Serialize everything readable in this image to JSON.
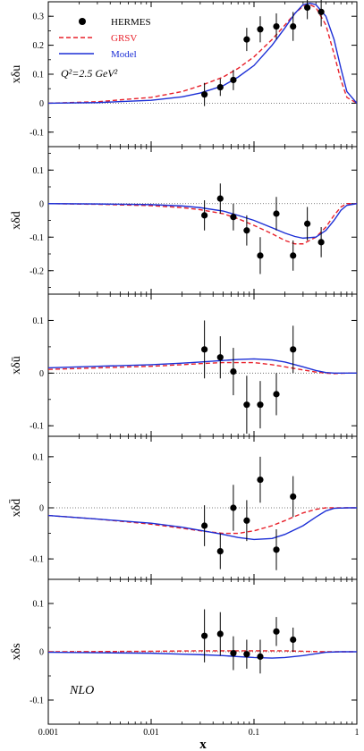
{
  "figure": {
    "xlabel": "x",
    "x_axis": {
      "type": "log",
      "range": [
        0.001,
        1
      ],
      "ticks": [
        0.001,
        0.01,
        0.1,
        1
      ],
      "tick_labels": [
        "0.001",
        "0.01",
        "0.1",
        "1"
      ]
    },
    "legend": [
      {
        "label": "HERMES",
        "style": "point",
        "color": "#000000"
      },
      {
        "label": "GRSV",
        "style": "dashed",
        "color": "#e8202a"
      },
      {
        "label": "Model",
        "style": "solid",
        "color": "#1c2fd6"
      }
    ],
    "legend_placement": "top-left of first panel",
    "annotations": {
      "scale": "Q²=2.5 GeV²",
      "order": "NLO"
    }
  },
  "chart_data": [
    {
      "type": "line",
      "ylabel": "xδu",
      "ylim": [
        -0.15,
        0.35
      ],
      "y_ticks": [
        -0.1,
        0,
        0.1,
        0.2,
        0.3
      ],
      "y_tick_labels": [
        "-0.1",
        "0",
        "0.1",
        "0.2",
        "0.3"
      ],
      "grid": false,
      "zero_line": "dotted",
      "points": [
        {
          "x": 0.033,
          "y": 0.03,
          "err": 0.04
        },
        {
          "x": 0.047,
          "y": 0.055,
          "err": 0.03
        },
        {
          "x": 0.063,
          "y": 0.08,
          "err": 0.035
        },
        {
          "x": 0.085,
          "y": 0.22,
          "err": 0.04
        },
        {
          "x": 0.115,
          "y": 0.255,
          "err": 0.045
        },
        {
          "x": 0.165,
          "y": 0.265,
          "err": 0.045
        },
        {
          "x": 0.24,
          "y": 0.265,
          "err": 0.05
        },
        {
          "x": 0.33,
          "y": 0.33,
          "err": 0.04
        },
        {
          "x": 0.45,
          "y": 0.315,
          "err": 0.05
        }
      ],
      "series": [
        {
          "name": "GRSV",
          "style": "dashed",
          "color": "#e8202a",
          "x": [
            0.001,
            0.003,
            0.01,
            0.02,
            0.03,
            0.05,
            0.07,
            0.1,
            0.15,
            0.2,
            0.25,
            0.3,
            0.35,
            0.4,
            0.5,
            0.6,
            0.7,
            0.8,
            1
          ],
          "y": [
            0.0,
            0.005,
            0.02,
            0.04,
            0.06,
            0.09,
            0.12,
            0.16,
            0.22,
            0.27,
            0.31,
            0.335,
            0.34,
            0.33,
            0.27,
            0.17,
            0.08,
            0.02,
            0.0
          ]
        },
        {
          "name": "Model",
          "style": "solid",
          "color": "#1c2fd6",
          "x": [
            0.001,
            0.003,
            0.01,
            0.02,
            0.03,
            0.05,
            0.07,
            0.1,
            0.15,
            0.2,
            0.25,
            0.3,
            0.35,
            0.4,
            0.5,
            0.6,
            0.7,
            0.8,
            1
          ],
          "y": [
            0.0,
            0.002,
            0.01,
            0.022,
            0.035,
            0.06,
            0.09,
            0.13,
            0.2,
            0.26,
            0.31,
            0.34,
            0.345,
            0.34,
            0.3,
            0.22,
            0.12,
            0.04,
            0.0
          ]
        }
      ]
    },
    {
      "type": "line",
      "ylabel": "xδd",
      "ylim": [
        -0.27,
        0.17
      ],
      "y_ticks": [
        -0.2,
        -0.1,
        0,
        0.1
      ],
      "y_tick_labels": [
        "-0.2",
        "-0.1",
        "0",
        "0.1"
      ],
      "grid": false,
      "zero_line": "dotted",
      "points": [
        {
          "x": 0.033,
          "y": -0.035,
          "err": 0.045
        },
        {
          "x": 0.047,
          "y": 0.015,
          "err": 0.045
        },
        {
          "x": 0.063,
          "y": -0.04,
          "err": 0.04
        },
        {
          "x": 0.085,
          "y": -0.08,
          "err": 0.045
        },
        {
          "x": 0.115,
          "y": -0.155,
          "err": 0.055
        },
        {
          "x": 0.165,
          "y": -0.03,
          "err": 0.05
        },
        {
          "x": 0.24,
          "y": -0.155,
          "err": 0.045
        },
        {
          "x": 0.33,
          "y": -0.06,
          "err": 0.05
        },
        {
          "x": 0.45,
          "y": -0.115,
          "err": 0.045
        }
      ],
      "series": [
        {
          "name": "GRSV",
          "style": "dashed",
          "color": "#e8202a",
          "x": [
            0.001,
            0.003,
            0.01,
            0.02,
            0.03,
            0.05,
            0.07,
            0.1,
            0.15,
            0.2,
            0.25,
            0.3,
            0.4,
            0.5,
            0.6,
            0.7,
            0.8,
            1
          ],
          "y": [
            0.0,
            -0.002,
            -0.006,
            -0.012,
            -0.018,
            -0.03,
            -0.045,
            -0.065,
            -0.09,
            -0.11,
            -0.12,
            -0.12,
            -0.1,
            -0.07,
            -0.035,
            -0.01,
            0.0,
            0.0
          ]
        },
        {
          "name": "Model",
          "style": "solid",
          "color": "#1c2fd6",
          "x": [
            0.001,
            0.003,
            0.01,
            0.02,
            0.03,
            0.05,
            0.07,
            0.1,
            0.15,
            0.2,
            0.25,
            0.3,
            0.4,
            0.5,
            0.6,
            0.7,
            0.8,
            1
          ],
          "y": [
            0.0,
            -0.001,
            -0.003,
            -0.007,
            -0.012,
            -0.022,
            -0.035,
            -0.05,
            -0.072,
            -0.088,
            -0.098,
            -0.103,
            -0.1,
            -0.08,
            -0.05,
            -0.02,
            -0.005,
            0.0
          ]
        }
      ]
    },
    {
      "type": "line",
      "ylabel": "xδū",
      "ylim": [
        -0.12,
        0.15
      ],
      "y_ticks": [
        -0.1,
        0,
        0.1
      ],
      "y_tick_labels": [
        "-0.1",
        "0",
        "0.1"
      ],
      "grid": false,
      "zero_line": "dotted",
      "points": [
        {
          "x": 0.033,
          "y": 0.045,
          "err": 0.055
        },
        {
          "x": 0.047,
          "y": 0.03,
          "err": 0.04
        },
        {
          "x": 0.063,
          "y": 0.003,
          "err": 0.045
        },
        {
          "x": 0.085,
          "y": -0.06,
          "err": 0.055
        },
        {
          "x": 0.115,
          "y": -0.06,
          "err": 0.045
        },
        {
          "x": 0.165,
          "y": -0.04,
          "err": 0.04
        },
        {
          "x": 0.24,
          "y": 0.045,
          "err": 0.045
        }
      ],
      "series": [
        {
          "name": "GRSV",
          "style": "dashed",
          "color": "#e8202a",
          "x": [
            0.001,
            0.003,
            0.01,
            0.02,
            0.03,
            0.05,
            0.1,
            0.15,
            0.2,
            0.3,
            0.4,
            0.5,
            0.6,
            0.8,
            1
          ],
          "y": [
            0.007,
            0.01,
            0.013,
            0.016,
            0.018,
            0.02,
            0.02,
            0.016,
            0.012,
            0.006,
            0.002,
            0.0,
            -0.001,
            0.0,
            0.0
          ]
        },
        {
          "name": "Model",
          "style": "solid",
          "color": "#1c2fd6",
          "x": [
            0.001,
            0.003,
            0.01,
            0.02,
            0.03,
            0.05,
            0.07,
            0.1,
            0.15,
            0.2,
            0.3,
            0.4,
            0.5,
            0.6,
            0.8,
            1
          ],
          "y": [
            0.01,
            0.013,
            0.016,
            0.019,
            0.021,
            0.024,
            0.026,
            0.027,
            0.025,
            0.021,
            0.012,
            0.005,
            0.001,
            0.0,
            0.0,
            0.0
          ]
        }
      ]
    },
    {
      "type": "line",
      "ylabel": "xδd̄",
      "ylim": [
        -0.14,
        0.14
      ],
      "y_ticks": [
        -0.1,
        0,
        0.1
      ],
      "y_tick_labels": [
        "-0.1",
        "0",
        "0.1"
      ],
      "grid": false,
      "zero_line": "dotted",
      "points": [
        {
          "x": 0.033,
          "y": -0.035,
          "err": 0.04
        },
        {
          "x": 0.047,
          "y": -0.085,
          "err": 0.035
        },
        {
          "x": 0.063,
          "y": 0.0,
          "err": 0.045
        },
        {
          "x": 0.085,
          "y": -0.025,
          "err": 0.04
        },
        {
          "x": 0.115,
          "y": 0.055,
          "err": 0.045
        },
        {
          "x": 0.165,
          "y": -0.082,
          "err": 0.04
        },
        {
          "x": 0.24,
          "y": 0.022,
          "err": 0.04
        }
      ],
      "series": [
        {
          "name": "GRSV",
          "style": "dashed",
          "color": "#e8202a",
          "x": [
            0.001,
            0.003,
            0.01,
            0.02,
            0.03,
            0.05,
            0.07,
            0.1,
            0.15,
            0.2,
            0.3,
            0.4,
            0.5,
            0.7,
            1
          ],
          "y": [
            -0.015,
            -0.022,
            -0.032,
            -0.04,
            -0.045,
            -0.05,
            -0.05,
            -0.045,
            -0.035,
            -0.025,
            -0.01,
            -0.003,
            0.0,
            0.0,
            0.0
          ]
        },
        {
          "name": "Model",
          "style": "solid",
          "color": "#1c2fd6",
          "x": [
            0.001,
            0.003,
            0.01,
            0.02,
            0.03,
            0.05,
            0.07,
            0.1,
            0.15,
            0.2,
            0.3,
            0.4,
            0.5,
            0.6,
            0.8,
            1
          ],
          "y": [
            -0.015,
            -0.022,
            -0.03,
            -0.038,
            -0.044,
            -0.052,
            -0.058,
            -0.062,
            -0.06,
            -0.052,
            -0.035,
            -0.018,
            -0.006,
            -0.001,
            0.0,
            0.0
          ]
        }
      ]
    },
    {
      "type": "line",
      "ylabel": "xδs",
      "ylim": [
        -0.15,
        0.15
      ],
      "y_ticks": [
        -0.1,
        0,
        0.1
      ],
      "y_tick_labels": [
        "-0.1",
        "0",
        "0.1"
      ],
      "grid": false,
      "zero_line": "dotted",
      "points": [
        {
          "x": 0.033,
          "y": 0.033,
          "err": 0.055
        },
        {
          "x": 0.047,
          "y": 0.037,
          "err": 0.045
        },
        {
          "x": 0.063,
          "y": -0.003,
          "err": 0.035
        },
        {
          "x": 0.085,
          "y": -0.005,
          "err": 0.03
        },
        {
          "x": 0.115,
          "y": -0.01,
          "err": 0.035
        },
        {
          "x": 0.165,
          "y": 0.042,
          "err": 0.03
        },
        {
          "x": 0.24,
          "y": 0.025,
          "err": 0.025
        }
      ],
      "series": [
        {
          "name": "GRSV",
          "style": "dashed",
          "color": "#e8202a",
          "x": [
            0.001,
            0.01,
            0.03,
            0.05,
            0.1,
            0.2,
            0.3,
            0.5,
            1
          ],
          "y": [
            0.0,
            0.001,
            0.002,
            0.002,
            0.002,
            0.002,
            0.001,
            0.0,
            0.0
          ]
        },
        {
          "name": "Model",
          "style": "solid",
          "color": "#1c2fd6",
          "x": [
            0.001,
            0.003,
            0.01,
            0.02,
            0.03,
            0.05,
            0.07,
            0.1,
            0.15,
            0.2,
            0.3,
            0.4,
            0.5,
            0.7,
            1
          ],
          "y": [
            -0.001,
            -0.002,
            -0.003,
            -0.005,
            -0.006,
            -0.008,
            -0.01,
            -0.012,
            -0.013,
            -0.012,
            -0.008,
            -0.004,
            -0.001,
            0.0,
            0.0
          ]
        }
      ]
    }
  ]
}
